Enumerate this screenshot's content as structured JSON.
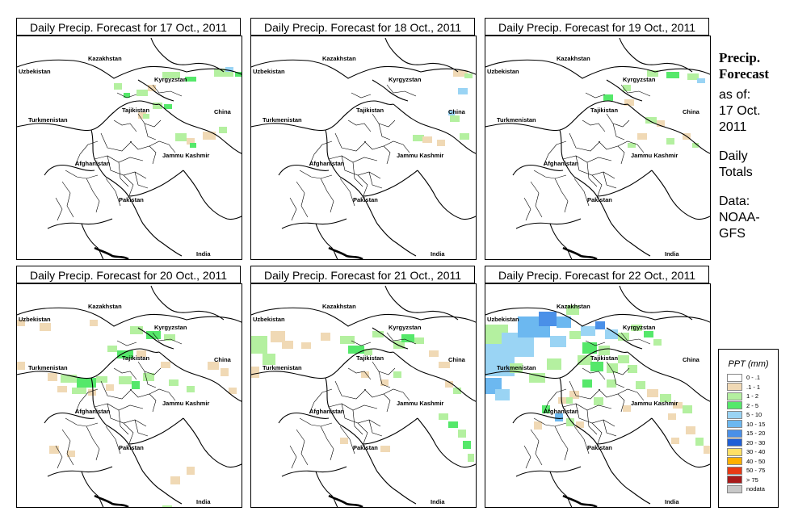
{
  "panels": [
    {
      "title": "Daily Precip. Forecast for  17 Oct., 2011"
    },
    {
      "title": "Daily Precip. Forecast for  18 Oct., 2011"
    },
    {
      "title": "Daily Precip. Forecast for  19 Oct., 2011"
    },
    {
      "title": "Daily Precip. Forecast for  20 Oct., 2011"
    },
    {
      "title": "Daily Precip. Forecast for  21 Oct., 2011"
    },
    {
      "title": "Daily Precip. Forecast for  22 Oct., 2011"
    }
  ],
  "map_labels": {
    "kazakhstan": "Kazakhstan",
    "uzbekistan": "Uzbekistan",
    "kyrgyzstan": "Kyrgyzstan",
    "tajikistan": "Tajikistan",
    "china": "China",
    "turkmenistan": "Turkmenistan",
    "afghanistan": "Afghanistan",
    "jammu_kashmir": "Jammu Kashmir",
    "pakistan": "Pakistan",
    "india": "India"
  },
  "sidebar": {
    "title_line1": "Precip.",
    "title_line2": "Forecast",
    "asof_line1": "as of:",
    "asof_line2": "17 Oct.",
    "asof_line3": "2011",
    "totals_line1": "Daily",
    "totals_line2": "Totals",
    "data_line1": "Data:",
    "data_line2": "NOAA-",
    "data_line3": "GFS"
  },
  "legend": {
    "title": "PPT (mm)",
    "items": [
      {
        "label": "0 - .1",
        "color": "#ffffff"
      },
      {
        "label": ".1 - 1",
        "color": "#f0d9b5"
      },
      {
        "label": "1 - 2",
        "color": "#b4f0a0"
      },
      {
        "label": "2 - 5",
        "color": "#55e86a"
      },
      {
        "label": "5 - 10",
        "color": "#9ad4f4"
      },
      {
        "label": "10 - 15",
        "color": "#6cb8f0"
      },
      {
        "label": "15 - 20",
        "color": "#4a90e8"
      },
      {
        "label": "20 - 30",
        "color": "#1f5fd6"
      },
      {
        "label": "30 - 40",
        "color": "#ffe066"
      },
      {
        "label": "40 - 50",
        "color": "#ffb000"
      },
      {
        "label": "50 - 75",
        "color": "#e83a14"
      },
      {
        "label": "> 75",
        "color": "#a81a1a"
      },
      {
        "label": "nodata",
        "color": "#c8c8c8"
      }
    ]
  }
}
